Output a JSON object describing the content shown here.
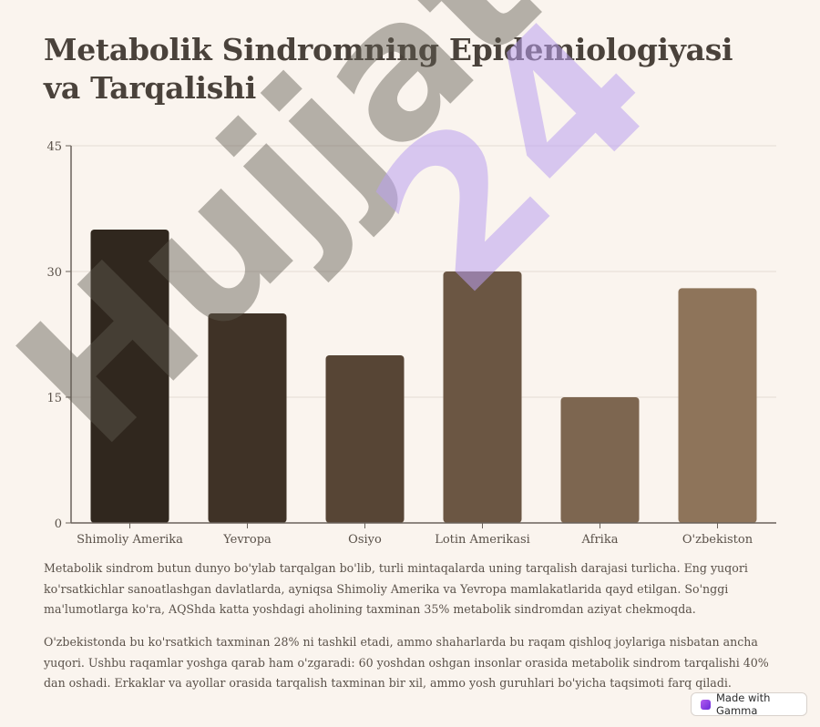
{
  "title": "Metabolik Sindromning Epidemiologiyasi va Tarqalishi",
  "chart_data": {
    "type": "bar",
    "categories": [
      "Shimoliy Amerika",
      "Yevropa",
      "Osiyo",
      "Lotin Amerikasi",
      "Afrika",
      "O'zbekiston"
    ],
    "values": [
      35,
      25,
      20,
      30,
      15,
      28
    ],
    "ylim": [
      0,
      45
    ],
    "yticks": [
      0,
      15,
      30,
      45
    ],
    "grid": true,
    "bar_colors": [
      "#30271e",
      "#3f3226",
      "#574535",
      "#6b5643",
      "#7d6650",
      "#8e745a"
    ]
  },
  "paragraphs": [
    "Metabolik sindrom butun dunyo bo'ylab tarqalgan bo'lib, turli mintaqalarda uning tarqalish darajasi turlicha. Eng yuqori ko'rsatkichlar sanoatlashgan davlatlarda, ayniqsa Shimoliy Amerika va Yevropa mamlakatlarida qayd etilgan. So'nggi ma'lumotlarga ko'ra, AQShda katta yoshdagi aholining taxminan 35% metabolik sindromdan aziyat chekmoqda.",
    "O'zbekistonda bu ko'rsatkich taxminan 28% ni tashkil etadi, ammo shaharlarda bu raqam qishloq joylariga nisbatan ancha yuqori. Ushbu raqamlar yoshga qarab ham o'zgaradi: 60 yoshdan oshgan insonlar orasida metabolik sindrom tarqalishi 40% dan oshadi. Erkaklar va ayollar orasida tarqalish taxminan bir xil, ammo yosh guruhlari bo'yicha taqsimoti farq qiladi."
  ],
  "watermarks": [
    "Hujjat",
    "24"
  ],
  "badge": {
    "label": "Made with Gamma",
    "icon": "gamma-logo-icon"
  }
}
